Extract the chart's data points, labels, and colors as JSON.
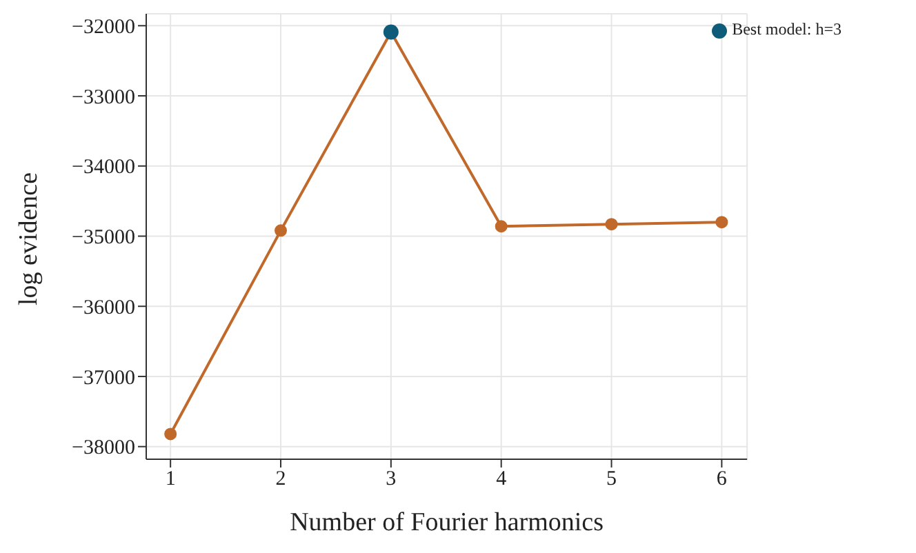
{
  "chart_data": {
    "type": "line",
    "xlabel": "Number of Fourier harmonics",
    "ylabel": "log evidence",
    "x": [
      1,
      2,
      3,
      4,
      5,
      6
    ],
    "series": [
      {
        "color": "#c0692a",
        "values": [
          -37820,
          -34920,
          -32090,
          -34860,
          -34830,
          -34800
        ],
        "marker": "circle"
      },
      {
        "type": "scatter",
        "name": "Best model: h=3",
        "color": "#0e5c7a",
        "x": [
          3
        ],
        "values": [
          -32090
        ],
        "marker": "circle"
      }
    ],
    "xlim": [
      0.78,
      6.23
    ],
    "xticks": [
      1,
      2,
      3,
      4,
      5,
      6
    ],
    "ylim": [
      -38180,
      -31830
    ],
    "yticks": [
      -38000,
      -37000,
      -36000,
      -35000,
      -34000,
      -33000,
      -32000
    ],
    "grid": true,
    "legend": "top right"
  }
}
